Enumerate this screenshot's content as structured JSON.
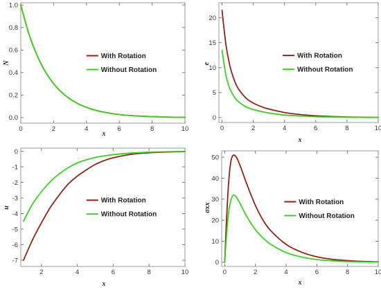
{
  "colors": {
    "with_rotation": "#8b2318",
    "without_rotation": "#3ccd24",
    "frame": "#9a9a9a"
  },
  "chart_data": [
    {
      "type": "line",
      "xlabel": "x",
      "ylabel": "N",
      "xlim": [
        0,
        10
      ],
      "ylim": [
        -0.05,
        1.02
      ],
      "xticks": [
        "0",
        "2",
        "4",
        "6",
        "8",
        "10"
      ],
      "yticks": [
        "0.0",
        "0.2",
        "0.4",
        "0.6",
        "0.8",
        "1.0"
      ],
      "legend_position": "center-right",
      "series": [
        {
          "name": "With Rotation",
          "x": [
            0,
            0.5,
            1,
            1.5,
            2,
            2.5,
            3,
            3.5,
            4,
            4.5,
            5,
            5.5,
            6,
            6.5,
            7,
            7.5,
            8,
            8.5,
            9,
            9.5,
            10
          ],
          "y": [
            1.0,
            0.741,
            0.549,
            0.407,
            0.301,
            0.223,
            0.165,
            0.122,
            0.091,
            0.067,
            0.05,
            0.037,
            0.027,
            0.02,
            0.015,
            0.011,
            0.008,
            0.006,
            0.004,
            0.003,
            0.002
          ]
        },
        {
          "name": "Without Rotation",
          "x": [
            0,
            0.5,
            1,
            1.5,
            2,
            2.5,
            3,
            3.5,
            4,
            4.5,
            5,
            5.5,
            6,
            6.5,
            7,
            7.5,
            8,
            8.5,
            9,
            9.5,
            10
          ],
          "y": [
            1.0,
            0.741,
            0.549,
            0.407,
            0.301,
            0.223,
            0.165,
            0.122,
            0.091,
            0.067,
            0.05,
            0.037,
            0.027,
            0.02,
            0.015,
            0.011,
            0.008,
            0.006,
            0.004,
            0.003,
            0.002
          ]
        }
      ]
    },
    {
      "type": "line",
      "xlabel": "x",
      "ylabel": "e",
      "xlim": [
        -0.2,
        10
      ],
      "ylim": [
        -1,
        23
      ],
      "xticks": [
        "0",
        "2",
        "4",
        "6",
        "8",
        "10"
      ],
      "yticks": [
        "0",
        "5",
        "10",
        "15",
        "20"
      ],
      "legend_position": "center-right",
      "series": [
        {
          "name": "With Rotation",
          "x": [
            0,
            0.25,
            0.5,
            0.75,
            1,
            1.5,
            2,
            2.5,
            3,
            4,
            5,
            6,
            7,
            8,
            9,
            10
          ],
          "y": [
            21.5,
            14.6,
            10.4,
            7.8,
            6.0,
            4.0,
            2.9,
            2.2,
            1.7,
            1.0,
            0.6,
            0.35,
            0.2,
            0.1,
            0.05,
            0.02
          ]
        },
        {
          "name": "Without Rotation",
          "x": [
            0,
            0.25,
            0.5,
            0.75,
            1,
            1.5,
            2,
            2.5,
            3,
            4,
            5,
            6,
            7,
            8,
            9,
            10
          ],
          "y": [
            13.5,
            8.5,
            5.8,
            4.3,
            3.3,
            2.2,
            1.6,
            1.2,
            0.9,
            0.5,
            0.3,
            0.17,
            0.1,
            0.05,
            0.02,
            0.01
          ]
        }
      ]
    },
    {
      "type": "line",
      "xlabel": "x",
      "ylabel": "u",
      "xlim": [
        0.85,
        10
      ],
      "ylim": [
        -7.4,
        0.2
      ],
      "xticks": [
        "2",
        "4",
        "6",
        "8",
        "10"
      ],
      "yticks": [
        "-7",
        "-6",
        "-5",
        "-4",
        "-3",
        "-2",
        "-1",
        "0"
      ],
      "legend_position": "center-right",
      "series": [
        {
          "name": "With Rotation",
          "x": [
            1,
            1.5,
            2,
            2.5,
            3,
            3.5,
            4,
            4.5,
            5,
            5.5,
            6,
            7,
            8,
            9,
            10
          ],
          "y": [
            -7.0,
            -5.7,
            -4.6,
            -3.6,
            -2.8,
            -2.1,
            -1.6,
            -1.2,
            -0.85,
            -0.6,
            -0.42,
            -0.2,
            -0.1,
            -0.05,
            -0.02
          ]
        },
        {
          "name": "Without Rotation",
          "x": [
            1,
            1.5,
            2,
            2.5,
            3,
            3.5,
            4,
            4.5,
            5,
            5.5,
            6,
            7,
            8,
            9,
            10
          ],
          "y": [
            -4.5,
            -3.4,
            -2.6,
            -1.95,
            -1.45,
            -1.05,
            -0.75,
            -0.55,
            -0.4,
            -0.3,
            -0.22,
            -0.12,
            -0.06,
            -0.03,
            -0.01
          ]
        }
      ]
    },
    {
      "type": "line",
      "xlabel": "x",
      "ylabel": "σxx",
      "xlim": [
        -0.2,
        10
      ],
      "ylim": [
        -2,
        53
      ],
      "xticks": [
        "0",
        "2",
        "4",
        "6",
        "8",
        "10"
      ],
      "yticks": [
        "0",
        "10",
        "20",
        "30",
        "40",
        "50"
      ],
      "legend_position": "center-right",
      "series": [
        {
          "name": "With Rotation",
          "x": [
            0,
            0.1,
            0.2,
            0.3,
            0.4,
            0.5,
            0.6,
            0.7,
            0.8,
            1,
            1.2,
            1.5,
            2,
            2.5,
            3,
            4,
            5,
            6,
            7,
            8,
            9,
            10
          ],
          "y": [
            0,
            18,
            32,
            42,
            48,
            50.5,
            51,
            50.5,
            49.5,
            46,
            42,
            36,
            27,
            20,
            15,
            8.5,
            4.8,
            2.6,
            1.4,
            0.8,
            0.4,
            0.2
          ]
        },
        {
          "name": "Without Rotation",
          "x": [
            0,
            0.1,
            0.2,
            0.3,
            0.4,
            0.5,
            0.6,
            0.7,
            0.8,
            1,
            1.2,
            1.5,
            2,
            2.5,
            3,
            4,
            5,
            6,
            7,
            8,
            9,
            10
          ],
          "y": [
            0,
            11,
            20,
            26,
            29.5,
            31.5,
            32,
            31.5,
            30.5,
            28,
            25,
            21,
            15.5,
            11.5,
            8.5,
            4.6,
            2.5,
            1.3,
            0.7,
            0.35,
            0.18,
            0.09
          ]
        }
      ]
    }
  ]
}
